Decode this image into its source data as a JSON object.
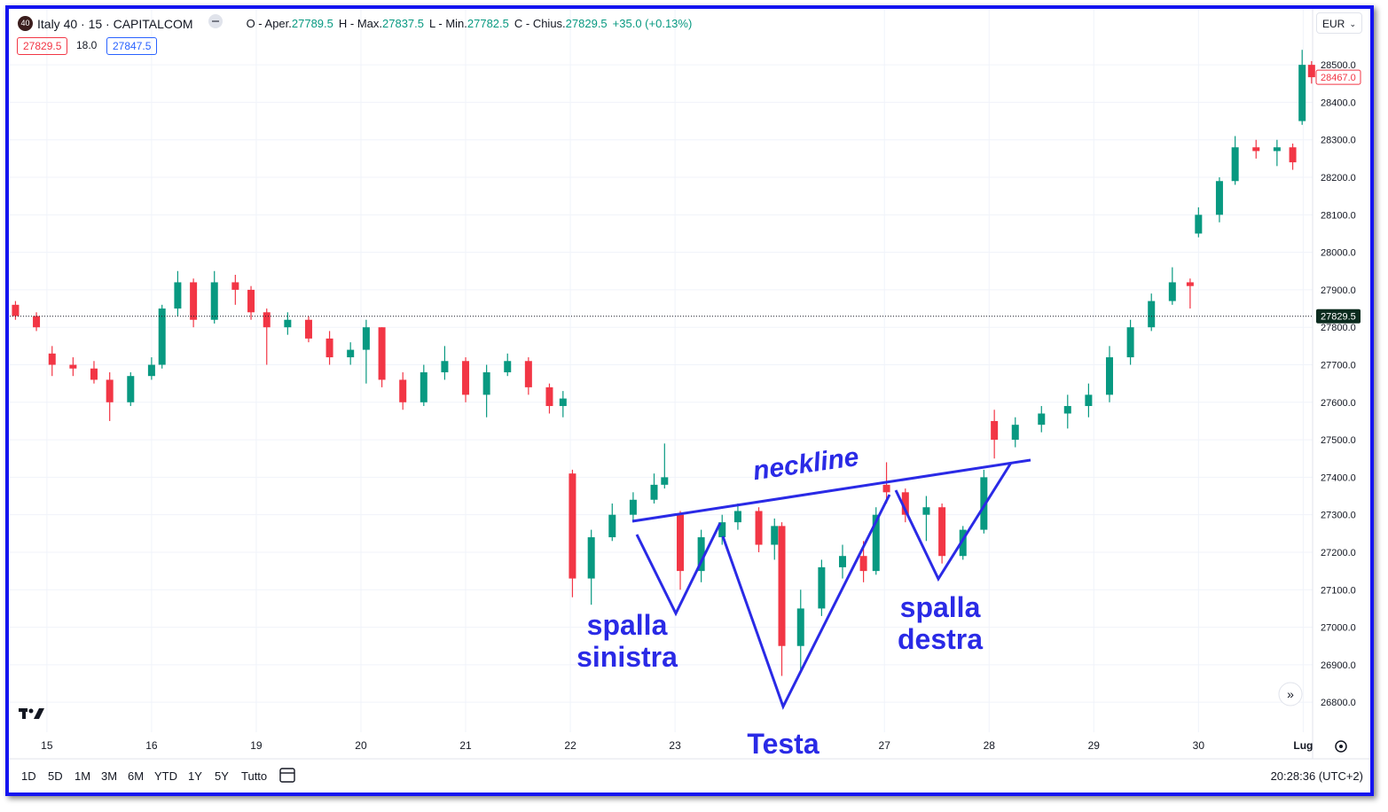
{
  "header": {
    "logo": "40",
    "symbol": "Italy 40 · 15 · CAPITALCOM",
    "ohlc": [
      {
        "label": "O - Aper.",
        "value": "27789.5"
      },
      {
        "label": "H - Max.",
        "value": "27837.5"
      },
      {
        "label": "L - Min.",
        "value": "27782.5"
      },
      {
        "label": "C - Chius.",
        "value": "27829.5"
      }
    ],
    "change": "+35.0 (+0.13%)",
    "bid": "27829.5",
    "spread": "18.0",
    "ask": "27847.5",
    "currency": "EUR"
  },
  "chart_data": {
    "type": "candlestick",
    "up_color": "#089981",
    "down_color": "#f23645",
    "grid": true,
    "x": [
      -0.3,
      -0.1,
      0.05,
      0.25,
      0.45,
      0.6,
      0.8,
      1.0,
      1.1,
      1.25,
      1.4,
      1.6,
      1.8,
      1.95,
      2.1,
      2.3,
      2.5,
      2.7,
      2.9,
      3.05,
      3.2,
      3.4,
      3.6,
      3.8,
      4.0,
      4.2,
      4.4,
      4.6,
      4.8,
      4.93,
      5.02,
      5.2,
      5.4,
      5.6,
      5.8,
      5.9,
      6.05,
      6.25,
      6.45,
      6.6,
      6.8,
      6.95,
      7.02,
      7.2,
      7.4,
      7.6,
      7.8,
      7.92,
      8.02,
      8.2,
      8.4,
      8.55,
      8.75,
      8.95,
      9.05,
      9.25,
      9.5,
      9.75,
      9.95,
      10.15,
      10.35,
      10.55,
      10.75,
      10.92,
      11.0,
      11.2,
      11.35,
      11.55,
      11.75,
      11.9,
      11.99,
      12.08
    ],
    "open": [
      27860,
      27830,
      27730,
      27700,
      27690,
      27660,
      27600,
      27670,
      27700,
      27850,
      27920,
      27820,
      27920,
      27900,
      27840,
      27800,
      27820,
      27770,
      27720,
      27740,
      27800,
      27660,
      27600,
      27680,
      27710,
      27620,
      27680,
      27710,
      27640,
      27590,
      27410,
      27130,
      27240,
      27300,
      27340,
      27380,
      27300,
      27150,
      27240,
      27280,
      27310,
      27220,
      27270,
      26950,
      27050,
      27160,
      27190,
      27150,
      27380,
      27360,
      27300,
      27320,
      27190,
      27260,
      27550,
      27500,
      27540,
      27570,
      27590,
      27620,
      27720,
      27800,
      27870,
      27920,
      28050,
      28100,
      28190,
      28280,
      28270,
      28280,
      28350,
      28500
    ],
    "high": [
      27870,
      27840,
      27750,
      27720,
      27710,
      27680,
      27680,
      27720,
      27860,
      27950,
      27930,
      27950,
      27940,
      27910,
      27850,
      27840,
      27830,
      27790,
      27760,
      27820,
      27800,
      27680,
      27700,
      27750,
      27720,
      27700,
      27730,
      27720,
      27650,
      27630,
      27420,
      27260,
      27330,
      27360,
      27410,
      27490,
      27310,
      27260,
      27300,
      27330,
      27320,
      27290,
      27280,
      27100,
      27180,
      27220,
      27230,
      27320,
      27440,
      27370,
      27350,
      27330,
      27270,
      27420,
      27580,
      27560,
      27590,
      27620,
      27650,
      27750,
      27820,
      27890,
      27960,
      27930,
      28120,
      28200,
      28310,
      28300,
      28300,
      28290,
      28540,
      28510
    ],
    "low": [
      27820,
      27790,
      27670,
      27670,
      27650,
      27550,
      27590,
      27660,
      27690,
      27830,
      27800,
      27810,
      27860,
      27820,
      27700,
      27780,
      27760,
      27700,
      27700,
      27650,
      27640,
      27580,
      27590,
      27660,
      27600,
      27560,
      27670,
      27620,
      27570,
      27560,
      27080,
      27060,
      27230,
      27280,
      27330,
      27370,
      27100,
      27120,
      27220,
      27260,
      27200,
      27180,
      26870,
      26880,
      27030,
      27130,
      27120,
      27140,
      27330,
      27280,
      27230,
      27170,
      27180,
      27250,
      27450,
      27480,
      27520,
      27530,
      27560,
      27600,
      27700,
      27790,
      27860,
      27850,
      28040,
      28080,
      28180,
      28250,
      28230,
      28220,
      28340,
      28450
    ],
    "close": [
      27830,
      27800,
      27700,
      27690,
      27660,
      27600,
      27670,
      27700,
      27850,
      27920,
      27820,
      27920,
      27900,
      27840,
      27800,
      27820,
      27770,
      27720,
      27740,
      27800,
      27660,
      27600,
      27680,
      27710,
      27620,
      27680,
      27710,
      27640,
      27590,
      27610,
      27130,
      27240,
      27300,
      27340,
      27380,
      27400,
      27150,
      27240,
      27280,
      27310,
      27220,
      27270,
      26950,
      27050,
      27160,
      27190,
      27150,
      27300,
      27360,
      27300,
      27320,
      27190,
      27260,
      27400,
      27500,
      27540,
      27570,
      27590,
      27620,
      27720,
      27800,
      27870,
      27920,
      27910,
      28100,
      28190,
      28280,
      28270,
      28280,
      28240,
      28500,
      28467
    ],
    "xlim": [
      -0.38,
      12.09
    ],
    "xticks": [
      {
        "value": 0,
        "label": "15"
      },
      {
        "value": 1,
        "label": "16"
      },
      {
        "value": 2,
        "label": "19"
      },
      {
        "value": 3,
        "label": "20"
      },
      {
        "value": 4,
        "label": "21"
      },
      {
        "value": 5,
        "label": "22"
      },
      {
        "value": 6,
        "label": "23"
      },
      {
        "value": 8,
        "label": "27"
      },
      {
        "value": 9,
        "label": "28"
      },
      {
        "value": 10,
        "label": "29"
      },
      {
        "value": 11,
        "label": "30"
      },
      {
        "value": 12,
        "label": "Lug"
      }
    ],
    "ylim": [
      26720,
      28654
    ],
    "yticks": [
      {
        "value": 26800,
        "label": "26800.0"
      },
      {
        "value": 26900,
        "label": "26900.0"
      },
      {
        "value": 27000,
        "label": "27000.0"
      },
      {
        "value": 27100,
        "label": "27100.0"
      },
      {
        "value": 27200,
        "label": "27200.0"
      },
      {
        "value": 27300,
        "label": "27300.0"
      },
      {
        "value": 27400,
        "label": "27400.0"
      },
      {
        "value": 27500,
        "label": "27500.0"
      },
      {
        "value": 27600,
        "label": "27600.0"
      },
      {
        "value": 27700,
        "label": "27700.0"
      },
      {
        "value": 27800,
        "label": "27800.0"
      },
      {
        "value": 27900,
        "label": "27900.0"
      },
      {
        "value": 28000,
        "label": "28000.0"
      },
      {
        "value": 28100,
        "label": "28100.0"
      },
      {
        "value": 28200,
        "label": "28200.0"
      },
      {
        "value": 28300,
        "label": "28300.0"
      },
      {
        "value": 28400,
        "label": "28400.0"
      },
      {
        "value": 28500,
        "label": "28500.0"
      }
    ],
    "last_price": {
      "value": 27829.5,
      "label": "27829.5"
    },
    "marker_price": {
      "value": 28467,
      "label": "28467.0"
    }
  },
  "annotations": {
    "neckline": "neckline",
    "left_shoulder": [
      "spalla",
      "sinistra"
    ],
    "head": "Testa",
    "right_shoulder": [
      "spalla",
      "destra"
    ]
  },
  "toolbar": {
    "ranges": [
      "1D",
      "5D",
      "1M",
      "3M",
      "6M",
      "YTD",
      "1Y",
      "5Y",
      "Tutto"
    ],
    "clock": "20:28:36 (UTC+2)"
  }
}
